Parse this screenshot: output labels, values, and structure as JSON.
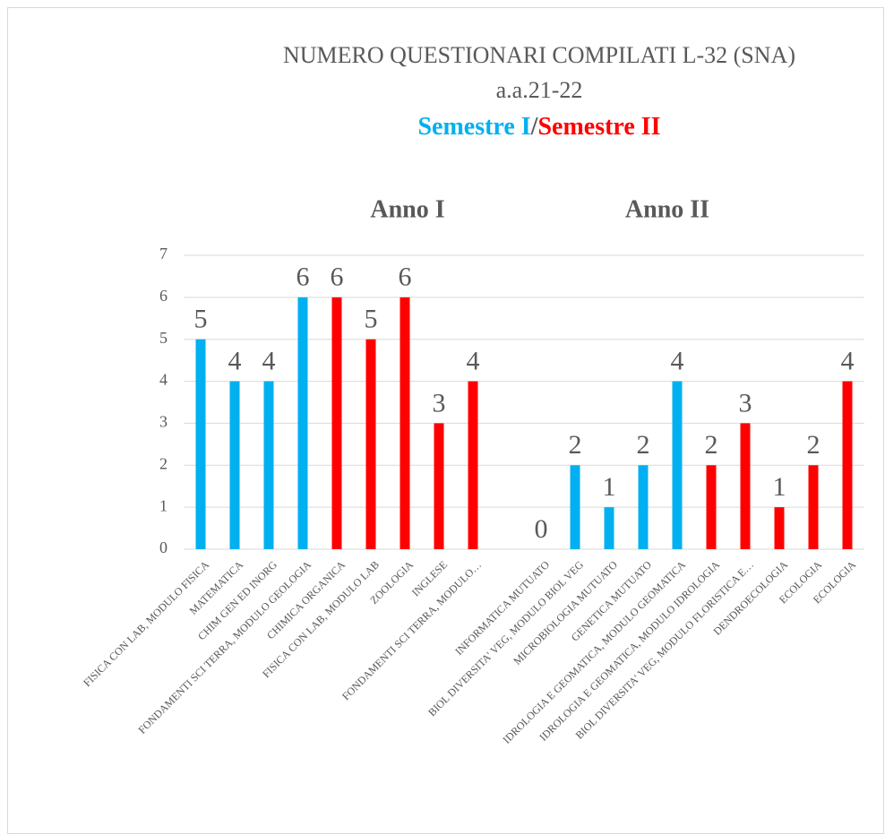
{
  "chart_data": {
    "type": "bar",
    "title": "NUMERO QUESTIONARI COMPILATI L-32 (SNA)",
    "subtitle": "a.a.21-22",
    "legend_line": [
      {
        "text": "Semestre I",
        "color": "#00b0f0"
      },
      {
        "text": "/",
        "color": "#595959"
      },
      {
        "text": "Semestre II",
        "color": "#ff0000"
      }
    ],
    "annotations": [
      "Anno I",
      "Anno II"
    ],
    "categories": [
      "FISICA CON LAB, MODULO FISICA",
      "MATEMATICA",
      "CHIM GEN ED INORG",
      "FONDAMENTI SCI TERRA, MODULO GEOLOGIA",
      "CHIMICA ORGANICA",
      "FISICA CON LAB, MODULO LAB",
      "ZOOLOGIA",
      "INGLESE",
      "FONDAMENTI SCI TERRA, MODULO…",
      null,
      "INFORMATICA MUTUATO",
      "BIOL DIVERSITA' VEG, MODULO BIOL VEG",
      "MICROBIOLOGIA MUTUATO",
      "GENETICA MUTUATO",
      "IDROLOGIA E GEOMATICA, MODULO GEOMATICA",
      "IDROLOGIA E GEOMATICA, MODULO IDROLOGIA",
      "BIOL DIVERSITA' VEG, MODULO FLORISTICA E…",
      "DENDROECOLOGIA",
      "ECOLOGIA",
      "ECOLOGIA"
    ],
    "values": [
      5,
      4,
      4,
      6,
      6,
      5,
      6,
      3,
      4,
      null,
      0,
      2,
      1,
      2,
      4,
      2,
      3,
      1,
      2,
      4
    ],
    "colors": [
      "#00b0f0",
      "#00b0f0",
      "#00b0f0",
      "#00b0f0",
      "#ff0000",
      "#ff0000",
      "#ff0000",
      "#ff0000",
      "#ff0000",
      null,
      "#00b0f0",
      "#00b0f0",
      "#00b0f0",
      "#00b0f0",
      "#00b0f0",
      "#ff0000",
      "#ff0000",
      "#ff0000",
      "#ff0000",
      "#ff0000"
    ],
    "ylim": [
      0,
      7
    ],
    "yticks": [
      0,
      1,
      2,
      3,
      4,
      5,
      6,
      7
    ],
    "grid": true
  }
}
